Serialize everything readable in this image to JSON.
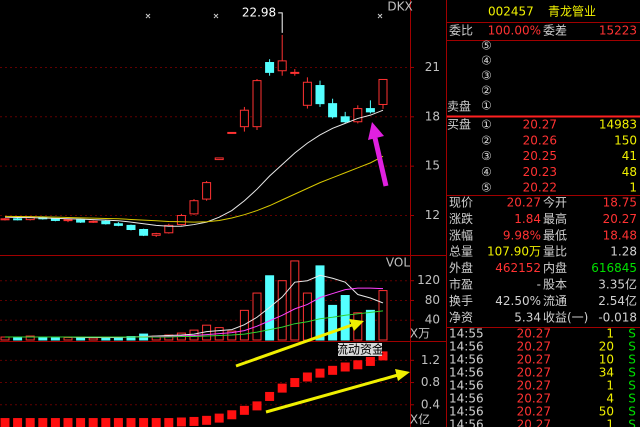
{
  "chart": {
    "indicator_label": "DKX",
    "high_mark": 22.98,
    "price": {
      "ylim": [
        9.6,
        25.1
      ],
      "yticks": [
        12,
        15,
        18,
        21
      ],
      "candles": [
        [
          11.75,
          11.85,
          11.7,
          11.8
        ],
        [
          11.8,
          11.85,
          11.7,
          11.75
        ],
        [
          11.75,
          11.95,
          11.7,
          11.9
        ],
        [
          11.9,
          11.95,
          11.75,
          11.8
        ],
        [
          11.8,
          11.85,
          11.65,
          11.7
        ],
        [
          11.7,
          11.8,
          11.6,
          11.75
        ],
        [
          11.75,
          11.8,
          11.55,
          11.6
        ],
        [
          11.6,
          11.7,
          11.55,
          11.65
        ],
        [
          11.65,
          11.7,
          11.45,
          11.5
        ],
        [
          11.5,
          11.6,
          11.35,
          11.4
        ],
        [
          11.4,
          11.45,
          11.1,
          11.15
        ],
        [
          11.15,
          11.2,
          10.75,
          10.8
        ],
        [
          10.8,
          10.95,
          10.7,
          10.9
        ],
        [
          10.95,
          11.5,
          10.9,
          11.4
        ],
        [
          11.45,
          12.1,
          11.4,
          12.0
        ],
        [
          12.1,
          13.0,
          12.05,
          12.9
        ],
        [
          13.0,
          14.1,
          12.9,
          14.0
        ],
        [
          15.4,
          15.5,
          15.4,
          15.5
        ],
        [
          17.0,
          17.05,
          17.0,
          17.05
        ],
        [
          17.4,
          18.6,
          17.1,
          18.4
        ],
        [
          17.4,
          20.3,
          17.2,
          20.2
        ],
        [
          21.3,
          21.5,
          20.5,
          20.7
        ],
        [
          20.8,
          22.98,
          20.5,
          21.4
        ],
        [
          20.7,
          20.9,
          20.5,
          20.7
        ],
        [
          18.7,
          20.4,
          18.5,
          20.1
        ],
        [
          19.9,
          20.2,
          18.6,
          18.8
        ],
        [
          18.8,
          19.1,
          17.9,
          18.0
        ],
        [
          18.0,
          18.3,
          17.6,
          17.7
        ],
        [
          17.7,
          18.7,
          17.6,
          18.5
        ],
        [
          18.5,
          19.0,
          18.2,
          18.3
        ],
        [
          18.75,
          20.27,
          18.48,
          20.27
        ]
      ],
      "lines": [
        {
          "color": "#e8e8e8",
          "values": [
            11.9,
            11.88,
            11.87,
            11.85,
            11.83,
            11.8,
            11.78,
            11.75,
            11.72,
            11.68,
            11.6,
            11.5,
            11.4,
            11.35,
            11.35,
            11.45,
            11.6,
            11.9,
            12.3,
            12.9,
            13.6,
            14.4,
            15.1,
            15.8,
            16.4,
            16.9,
            17.3,
            17.6,
            17.9,
            18.1,
            18.4
          ]
        },
        {
          "color": "#d8c800",
          "values": [
            11.95,
            11.94,
            11.93,
            11.92,
            11.9,
            11.88,
            11.86,
            11.84,
            11.82,
            11.8,
            11.76,
            11.72,
            11.68,
            11.64,
            11.62,
            11.6,
            11.62,
            11.7,
            11.85,
            12.05,
            12.3,
            12.6,
            12.95,
            13.3,
            13.65,
            14.0,
            14.3,
            14.6,
            14.9,
            15.2,
            15.6
          ]
        }
      ]
    },
    "volume": {
      "label": "VOL",
      "unit": "X万",
      "ylim": [
        0,
        170
      ],
      "yticks": [
        40,
        80,
        120
      ],
      "values": [
        6,
        5,
        8,
        5,
        4,
        5,
        6,
        4,
        5,
        6,
        7,
        12,
        8,
        10,
        14,
        20,
        30,
        25,
        18,
        60,
        95,
        130,
        120,
        160,
        95,
        150,
        70,
        90,
        55,
        60,
        100
      ],
      "lines": [
        {
          "color": "#e8e8e8",
          "values": [
            6,
            6,
            6,
            6,
            6,
            6,
            5,
            5,
            5,
            5,
            6,
            7,
            8,
            9,
            10,
            12,
            17,
            19,
            21,
            31,
            46,
            66,
            87,
            117,
            120,
            131,
            125,
            117,
            92,
            85,
            75
          ]
        },
        {
          "color": "#ff40ff",
          "values": [
            6,
            6,
            6,
            6,
            6,
            6,
            6,
            6,
            6,
            6,
            6,
            6,
            7,
            7,
            8,
            9,
            11,
            13,
            15,
            19,
            28,
            39,
            50,
            63,
            72,
            86,
            94,
            102,
            105,
            105,
            104
          ]
        },
        {
          "color": "#30d030",
          "values": [
            6,
            6,
            6,
            6,
            6,
            6,
            6,
            6,
            6,
            6,
            6,
            6,
            6,
            6,
            7,
            7,
            8,
            9,
            10,
            12,
            16,
            21,
            26,
            33,
            37,
            43,
            46,
            50,
            53,
            56,
            59
          ]
        }
      ]
    },
    "flow": {
      "label": "流动资金",
      "unit": "X亿",
      "ylim": [
        0,
        1.53
      ],
      "yticks": [
        0.4,
        0.8,
        1.2
      ],
      "values": [
        0.08,
        0.08,
        0.08,
        0.08,
        0.08,
        0.08,
        0.08,
        0.08,
        0.08,
        0.08,
        0.08,
        0.08,
        0.08,
        0.08,
        0.09,
        0.1,
        0.12,
        0.16,
        0.22,
        0.3,
        0.38,
        0.55,
        0.7,
        0.8,
        0.9,
        0.97,
        1.02,
        1.08,
        1.12,
        1.18,
        1.28
      ]
    }
  },
  "quote": {
    "code": "002457",
    "name": "青龙管业",
    "ratio": [
      "委比",
      "100.00%",
      "委差",
      "15223"
    ],
    "asks": {
      "label": "卖盘",
      "levels": [
        "⑤",
        "④",
        "③",
        "②",
        "①"
      ]
    },
    "bids": {
      "label": "买盘",
      "levels": [
        [
          "①",
          "20.27",
          "14983"
        ],
        [
          "②",
          "20.26",
          "150"
        ],
        [
          "③",
          "20.25",
          "41"
        ],
        [
          "④",
          "20.23",
          "48"
        ],
        [
          "⑤",
          "20.22",
          "1"
        ]
      ]
    },
    "stats": [
      [
        "现价",
        "20.27",
        "今开",
        "18.75"
      ],
      [
        "涨跌",
        "1.84",
        "最高",
        "20.27"
      ],
      [
        "涨幅",
        "9.98%",
        "最低",
        "18.48"
      ],
      [
        "总量",
        "107.90万",
        "量比",
        "1.28"
      ],
      [
        "外盘",
        "462152",
        "内盘",
        "616845"
      ],
      [
        "市盈",
        "-",
        "股本",
        "3.35亿"
      ],
      [
        "换手",
        "42.50%",
        "流通",
        "2.54亿"
      ],
      [
        "净资",
        "5.34",
        "收益(一)",
        "-0.018"
      ]
    ],
    "trades": [
      [
        "14:55",
        "20.27",
        "1",
        "S"
      ],
      [
        "14:56",
        "20.27",
        "20",
        "S"
      ],
      [
        "14:56",
        "20.27",
        "10",
        "S"
      ],
      [
        "14:56",
        "20.27",
        "34",
        "S"
      ],
      [
        "14:56",
        "20.27",
        "1",
        "S"
      ],
      [
        "14:56",
        "20.27",
        "4",
        "S"
      ],
      [
        "14:56",
        "20.27",
        "50",
        "S"
      ],
      [
        "14:56",
        "20.27",
        "1",
        "S"
      ]
    ]
  }
}
